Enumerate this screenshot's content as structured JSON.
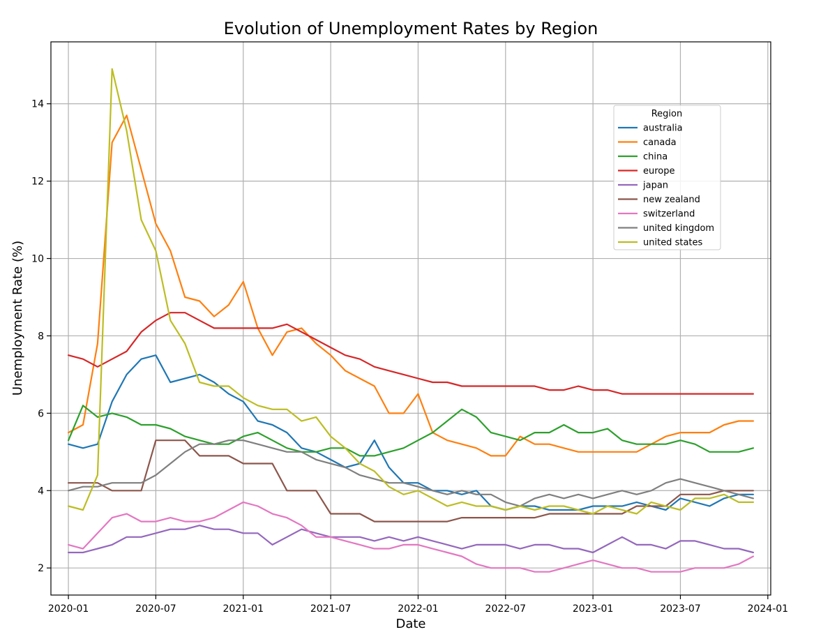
{
  "chart_data": {
    "type": "line",
    "title": "Evolution of Unemployment Rates by Region",
    "xlabel": "Date",
    "ylabel": "Unemployment Rate (%)",
    "ylim": [
      1.3,
      15.6
    ],
    "xlim": [
      -1.2,
      48.2
    ],
    "grid": true,
    "legend_title": "Region",
    "legend_position": "top-right",
    "x_ticks": [
      {
        "index": 0,
        "label": "2020-01"
      },
      {
        "index": 6,
        "label": "2020-07"
      },
      {
        "index": 12,
        "label": "2021-01"
      },
      {
        "index": 18,
        "label": "2021-07"
      },
      {
        "index": 24,
        "label": "2022-01"
      },
      {
        "index": 30,
        "label": "2022-07"
      },
      {
        "index": 36,
        "label": "2023-01"
      },
      {
        "index": 42,
        "label": "2023-07"
      },
      {
        "index": 48,
        "label": "2024-01"
      }
    ],
    "y_ticks": [
      2,
      4,
      6,
      8,
      10,
      12,
      14
    ],
    "x": [
      "2020-01",
      "2020-02",
      "2020-03",
      "2020-04",
      "2020-05",
      "2020-06",
      "2020-07",
      "2020-08",
      "2020-09",
      "2020-10",
      "2020-11",
      "2020-12",
      "2021-01",
      "2021-02",
      "2021-03",
      "2021-04",
      "2021-05",
      "2021-06",
      "2021-07",
      "2021-08",
      "2021-09",
      "2021-10",
      "2021-11",
      "2021-12",
      "2022-01",
      "2022-02",
      "2022-03",
      "2022-04",
      "2022-05",
      "2022-06",
      "2022-07",
      "2022-08",
      "2022-09",
      "2022-10",
      "2022-11",
      "2022-12",
      "2023-01",
      "2023-02",
      "2023-03",
      "2023-04",
      "2023-05",
      "2023-06",
      "2023-07",
      "2023-08",
      "2023-09",
      "2023-10",
      "2023-11",
      "2023-12"
    ],
    "series": [
      {
        "name": "australia",
        "color": "#1f77b4",
        "values": [
          5.2,
          5.1,
          5.2,
          6.3,
          7.0,
          7.4,
          7.5,
          6.8,
          6.9,
          7.0,
          6.8,
          6.5,
          6.3,
          5.8,
          5.7,
          5.5,
          5.1,
          5.0,
          4.8,
          4.6,
          4.7,
          5.3,
          4.6,
          4.2,
          4.2,
          4.0,
          4.0,
          3.9,
          4.0,
          3.6,
          3.5,
          3.6,
          3.6,
          3.5,
          3.5,
          3.5,
          3.6,
          3.6,
          3.6,
          3.7,
          3.6,
          3.5,
          3.8,
          3.7,
          3.6,
          3.8,
          3.9,
          3.9
        ]
      },
      {
        "name": "canada",
        "color": "#ff7f0e",
        "values": [
          5.5,
          5.7,
          7.8,
          13.0,
          13.7,
          12.3,
          10.9,
          10.2,
          9.0,
          8.9,
          8.5,
          8.8,
          9.4,
          8.2,
          7.5,
          8.1,
          8.2,
          7.8,
          7.5,
          7.1,
          6.9,
          6.7,
          6.0,
          6.0,
          6.5,
          5.5,
          5.3,
          5.2,
          5.1,
          4.9,
          4.9,
          5.4,
          5.2,
          5.2,
          5.1,
          5.0,
          5.0,
          5.0,
          5.0,
          5.0,
          5.2,
          5.4,
          5.5,
          5.5,
          5.5,
          5.7,
          5.8,
          5.8
        ]
      },
      {
        "name": "china",
        "color": "#2ca02c",
        "values": [
          5.3,
          6.2,
          5.9,
          6.0,
          5.9,
          5.7,
          5.7,
          5.6,
          5.4,
          5.3,
          5.2,
          5.2,
          5.4,
          5.5,
          5.3,
          5.1,
          5.0,
          5.0,
          5.1,
          5.1,
          4.9,
          4.9,
          5.0,
          5.1,
          5.3,
          5.5,
          5.8,
          6.1,
          5.9,
          5.5,
          5.4,
          5.3,
          5.5,
          5.5,
          5.7,
          5.5,
          5.5,
          5.6,
          5.3,
          5.2,
          5.2,
          5.2,
          5.3,
          5.2,
          5.0,
          5.0,
          5.0,
          5.1
        ]
      },
      {
        "name": "europe",
        "color": "#d62728",
        "values": [
          7.5,
          7.4,
          7.2,
          7.4,
          7.6,
          8.1,
          8.4,
          8.6,
          8.6,
          8.4,
          8.2,
          8.2,
          8.2,
          8.2,
          8.2,
          8.3,
          8.1,
          7.9,
          7.7,
          7.5,
          7.4,
          7.2,
          7.1,
          7.0,
          6.9,
          6.8,
          6.8,
          6.7,
          6.7,
          6.7,
          6.7,
          6.7,
          6.7,
          6.6,
          6.6,
          6.7,
          6.6,
          6.6,
          6.5,
          6.5,
          6.5,
          6.5,
          6.5,
          6.5,
          6.5,
          6.5,
          6.5,
          6.5
        ]
      },
      {
        "name": "japan",
        "color": "#9467bd",
        "values": [
          2.4,
          2.4,
          2.5,
          2.6,
          2.8,
          2.8,
          2.9,
          3.0,
          3.0,
          3.1,
          3.0,
          3.0,
          2.9,
          2.9,
          2.6,
          2.8,
          3.0,
          2.9,
          2.8,
          2.8,
          2.8,
          2.7,
          2.8,
          2.7,
          2.8,
          2.7,
          2.6,
          2.5,
          2.6,
          2.6,
          2.6,
          2.5,
          2.6,
          2.6,
          2.5,
          2.5,
          2.4,
          2.6,
          2.8,
          2.6,
          2.6,
          2.5,
          2.7,
          2.7,
          2.6,
          2.5,
          2.5,
          2.4
        ]
      },
      {
        "name": "new zealand",
        "color": "#8c564b",
        "values": [
          4.2,
          4.2,
          4.2,
          4.0,
          4.0,
          4.0,
          5.3,
          5.3,
          5.3,
          4.9,
          4.9,
          4.9,
          4.7,
          4.7,
          4.7,
          4.0,
          4.0,
          4.0,
          3.4,
          3.4,
          3.4,
          3.2,
          3.2,
          3.2,
          3.2,
          3.2,
          3.2,
          3.3,
          3.3,
          3.3,
          3.3,
          3.3,
          3.3,
          3.4,
          3.4,
          3.4,
          3.4,
          3.4,
          3.4,
          3.6,
          3.6,
          3.6,
          3.9,
          3.9,
          3.9,
          4.0,
          4.0,
          4.0
        ]
      },
      {
        "name": "switzerland",
        "color": "#e377c2",
        "values": [
          2.6,
          2.5,
          2.9,
          3.3,
          3.4,
          3.2,
          3.2,
          3.3,
          3.2,
          3.2,
          3.3,
          3.5,
          3.7,
          3.6,
          3.4,
          3.3,
          3.1,
          2.8,
          2.8,
          2.7,
          2.6,
          2.5,
          2.5,
          2.6,
          2.6,
          2.5,
          2.4,
          2.3,
          2.1,
          2.0,
          2.0,
          2.0,
          1.9,
          1.9,
          2.0,
          2.1,
          2.2,
          2.1,
          2.0,
          2.0,
          1.9,
          1.9,
          1.9,
          2.0,
          2.0,
          2.0,
          2.1,
          2.3
        ]
      },
      {
        "name": "united kingdom",
        "color": "#7f7f7f",
        "values": [
          4.0,
          4.1,
          4.1,
          4.2,
          4.2,
          4.2,
          4.4,
          4.7,
          5.0,
          5.2,
          5.2,
          5.3,
          5.3,
          5.2,
          5.1,
          5.0,
          5.0,
          4.8,
          4.7,
          4.6,
          4.4,
          4.3,
          4.2,
          4.2,
          4.1,
          4.0,
          3.9,
          4.0,
          3.9,
          3.9,
          3.7,
          3.6,
          3.8,
          3.9,
          3.8,
          3.9,
          3.8,
          3.9,
          4.0,
          3.9,
          4.0,
          4.2,
          4.3,
          4.2,
          4.1,
          4.0,
          3.9,
          3.8
        ]
      },
      {
        "name": "united states",
        "color": "#bcbd22",
        "values": [
          3.6,
          3.5,
          4.4,
          14.9,
          13.3,
          11.0,
          10.2,
          8.4,
          7.8,
          6.8,
          6.7,
          6.7,
          6.4,
          6.2,
          6.1,
          6.1,
          5.8,
          5.9,
          5.4,
          5.1,
          4.7,
          4.5,
          4.1,
          3.9,
          4.0,
          3.8,
          3.6,
          3.7,
          3.6,
          3.6,
          3.5,
          3.6,
          3.5,
          3.6,
          3.6,
          3.5,
          3.4,
          3.6,
          3.5,
          3.4,
          3.7,
          3.6,
          3.5,
          3.8,
          3.8,
          3.9,
          3.7,
          3.7
        ]
      }
    ]
  }
}
